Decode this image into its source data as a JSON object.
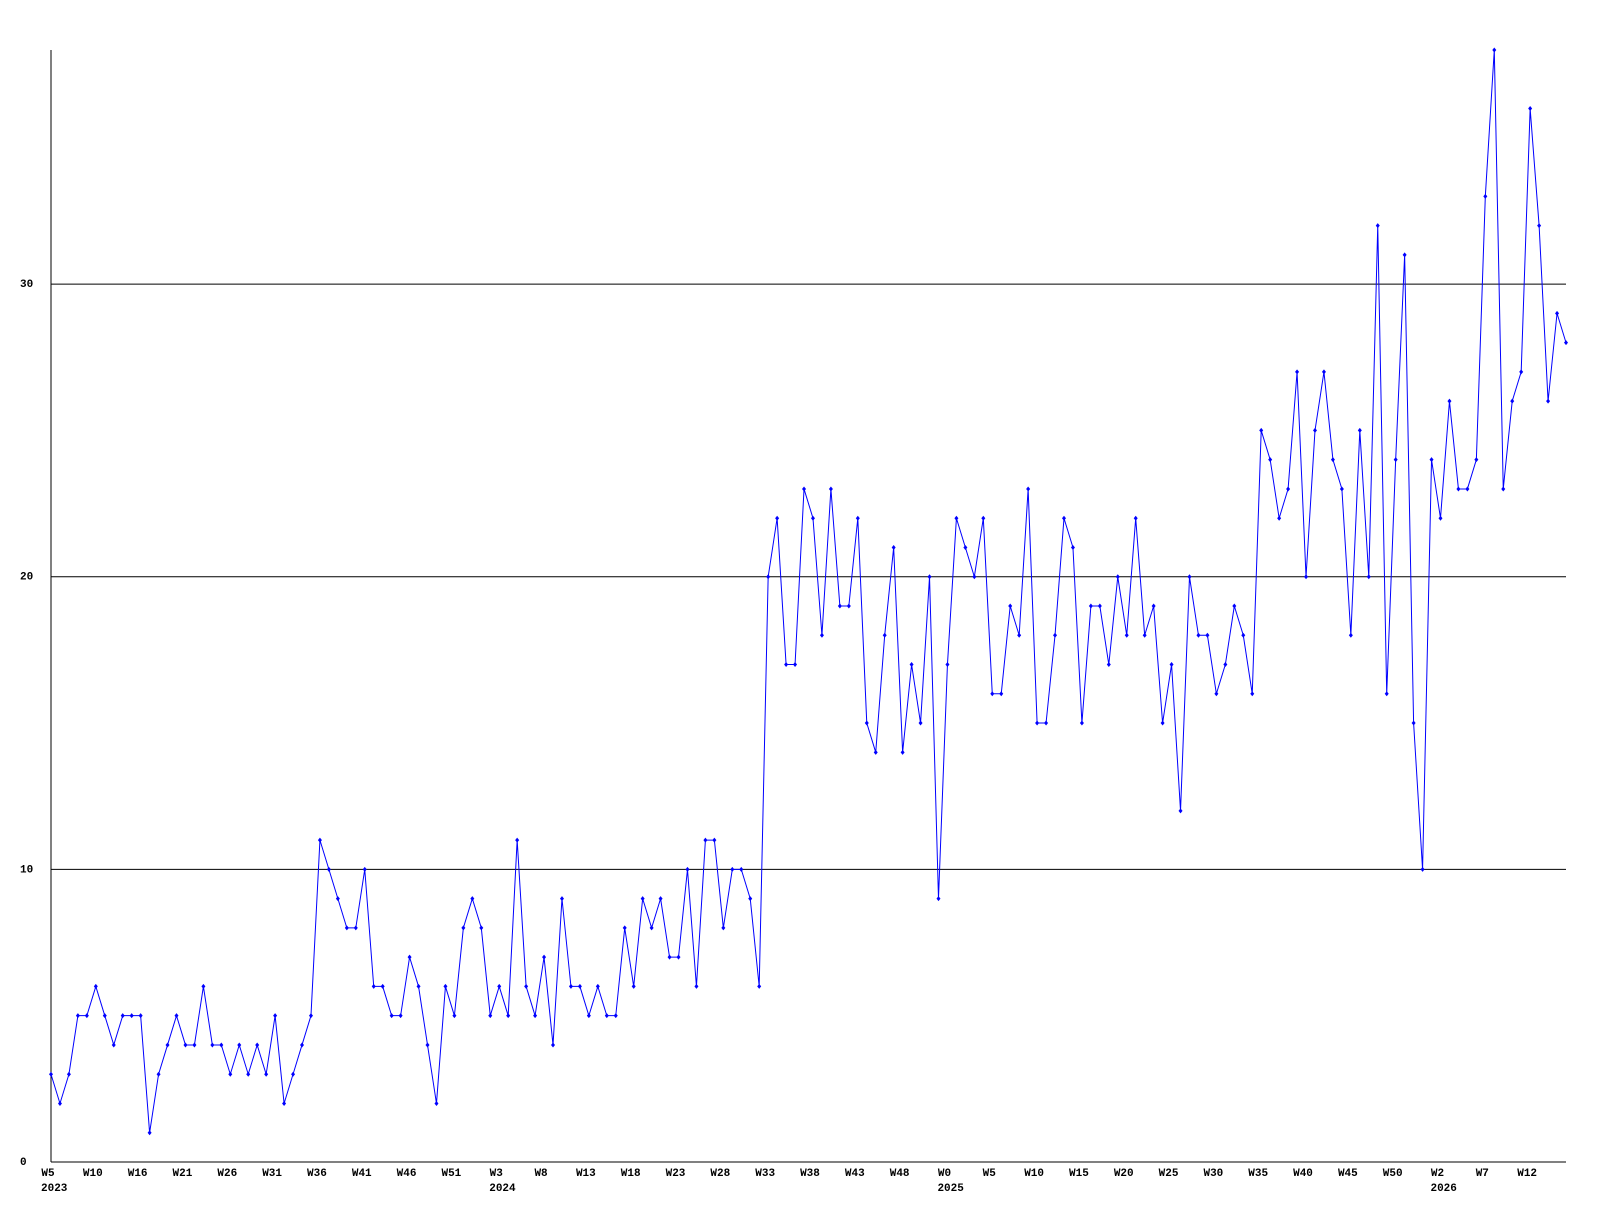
{
  "chart_data": {
    "type": "line",
    "categories": [
      "W5",
      null,
      null,
      null,
      null,
      "W10",
      null,
      null,
      null,
      null,
      "W16",
      null,
      null,
      null,
      null,
      "W21",
      null,
      null,
      null,
      null,
      "W26",
      null,
      null,
      null,
      null,
      "W31",
      null,
      null,
      null,
      null,
      "W36",
      null,
      null,
      null,
      null,
      "W41",
      null,
      null,
      null,
      null,
      "W46",
      null,
      null,
      null,
      null,
      "W51",
      null,
      null,
      null,
      null,
      "W3",
      null,
      null,
      null,
      null,
      "W8",
      null,
      null,
      null,
      null,
      "W13",
      null,
      null,
      null,
      null,
      "W18",
      null,
      null,
      null,
      null,
      "W23",
      null,
      null,
      null,
      null,
      "W28",
      null,
      null,
      null,
      null,
      "W33",
      null,
      null,
      null,
      null,
      "W38",
      null,
      null,
      null,
      null,
      "W43",
      null,
      null,
      null,
      null,
      "W48",
      null,
      null,
      null,
      null,
      "W0",
      null,
      null,
      null,
      null,
      "W5",
      null,
      null,
      null,
      null,
      "W10",
      null,
      null,
      null,
      null,
      "W15",
      null,
      null,
      null,
      null,
      "W20",
      null,
      null,
      null,
      null,
      "W25",
      null,
      null,
      null,
      null,
      "W30",
      null,
      null,
      null,
      null,
      "W35",
      null,
      null,
      null,
      null,
      "W40",
      null,
      null,
      null,
      null,
      "W45",
      null,
      null,
      null,
      null,
      "W50",
      null,
      null,
      null,
      null,
      "W2",
      null,
      null,
      null,
      null,
      "W7",
      null,
      null,
      null,
      null,
      "W12",
      null,
      null,
      null,
      null
    ],
    "year_labels": [
      {
        "value": 0,
        "label": "2023"
      },
      {
        "value": 50,
        "label": "2024"
      },
      {
        "value": 100,
        "label": "2025"
      },
      {
        "value": 155,
        "label": "2026"
      }
    ],
    "series": [
      {
        "color": "#0000ff",
        "values": [
          3,
          2,
          3,
          5,
          5,
          6,
          5,
          4,
          5,
          5,
          5,
          1,
          3,
          4,
          5,
          4,
          4,
          6,
          4,
          4,
          3,
          4,
          3,
          4,
          3,
          5,
          2,
          3,
          4,
          5,
          11,
          10,
          9,
          8,
          8,
          10,
          6,
          6,
          5,
          5,
          7,
          6,
          4,
          2,
          6,
          5,
          8,
          9,
          8,
          5,
          6,
          5,
          11,
          6,
          5,
          7,
          4,
          9,
          6,
          6,
          5,
          6,
          5,
          5,
          8,
          6,
          9,
          8,
          9,
          7,
          7,
          10,
          6,
          11,
          11,
          8,
          10,
          10,
          9,
          6,
          20,
          22,
          17,
          17,
          23,
          22,
          18,
          23,
          19,
          19,
          22,
          15,
          14,
          18,
          21,
          14,
          17,
          15,
          20,
          9,
          17,
          22,
          21,
          20,
          22,
          16,
          16,
          19,
          18,
          23,
          15,
          15,
          18,
          22,
          21,
          15,
          19,
          19,
          17,
          20,
          18,
          22,
          18,
          19,
          15,
          17,
          12,
          20,
          18,
          18,
          16,
          17,
          19,
          18,
          16,
          25,
          24,
          22,
          23,
          27,
          20,
          25,
          27,
          24,
          23,
          18,
          25,
          20,
          32,
          16,
          24,
          31,
          15,
          10,
          24,
          22,
          26,
          23,
          23,
          24,
          33,
          38,
          23,
          26,
          27,
          36,
          32,
          26,
          29,
          28
        ]
      }
    ],
    "ylim": [
      0,
      38
    ],
    "yticks": [
      0,
      10,
      20,
      30
    ],
    "grid": true
  }
}
